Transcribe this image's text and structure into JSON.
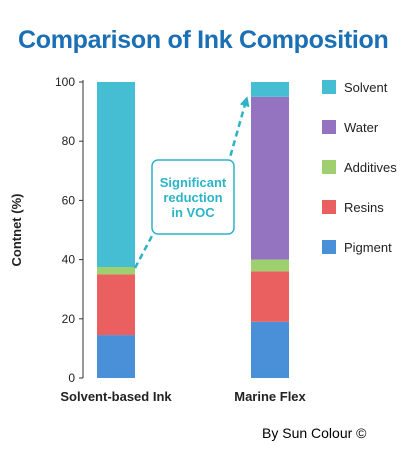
{
  "title": "Comparison of Ink Composition",
  "credit": "By Sun Colour ©",
  "chart_data": {
    "type": "bar",
    "stacked": true,
    "title": "Comparison of Ink Composition",
    "xlabel": "",
    "ylabel": "Contnet (%)",
    "ylim": [
      0,
      100
    ],
    "yticks": [
      0,
      20,
      40,
      60,
      80,
      100
    ],
    "grid": false,
    "legend_position": "right",
    "categories": [
      "Solvent-based Ink",
      "Marine Flex"
    ],
    "series": [
      {
        "name": "Pigment",
        "color": "#4a90d9",
        "values": [
          14.5,
          19
        ]
      },
      {
        "name": "Resins",
        "color": "#ea5f5f",
        "values": [
          20.5,
          17
        ]
      },
      {
        "name": "Additives",
        "color": "#9ed070",
        "values": [
          2.5,
          4
        ]
      },
      {
        "name": "Water",
        "color": "#9474c0",
        "values": [
          0,
          55
        ]
      },
      {
        "name": "Solvent",
        "color": "#45bed3",
        "values": [
          62.5,
          5
        ]
      }
    ],
    "annotation": {
      "lines": [
        "Significant",
        "reduction",
        "in VOC"
      ],
      "color": "#2bb3c8"
    }
  }
}
